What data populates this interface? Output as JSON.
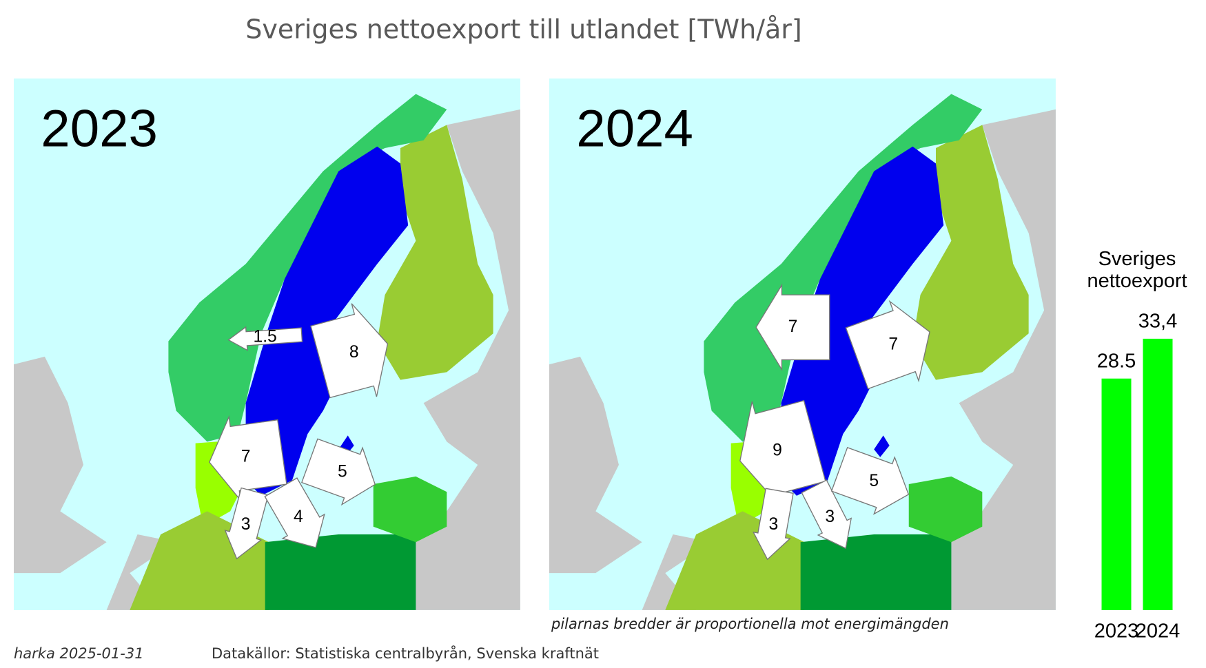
{
  "title": "Sveriges nettoexport till utlandet [TWh/år]",
  "maps": [
    {
      "year": "2023",
      "arrows": [
        1.5,
        8,
        7,
        3,
        4,
        5
      ]
    },
    {
      "year": "2024",
      "arrows": [
        7,
        7,
        9,
        3,
        3,
        5
      ]
    }
  ],
  "note": "pilarnas bredder är proportionella mot energimängden",
  "footer": {
    "author": "harka 2025-01-31",
    "sources": "Datakällor: Statistiska centralbyrån, Svenska kraftnät"
  },
  "chart_data": {
    "type": "bar",
    "title": "Sveriges nettoexport",
    "categories": [
      "2023",
      "2024"
    ],
    "values": [
      28.5,
      33.4
    ],
    "value_labels": [
      "28.5",
      "33,4"
    ],
    "color": "#00ff00"
  }
}
